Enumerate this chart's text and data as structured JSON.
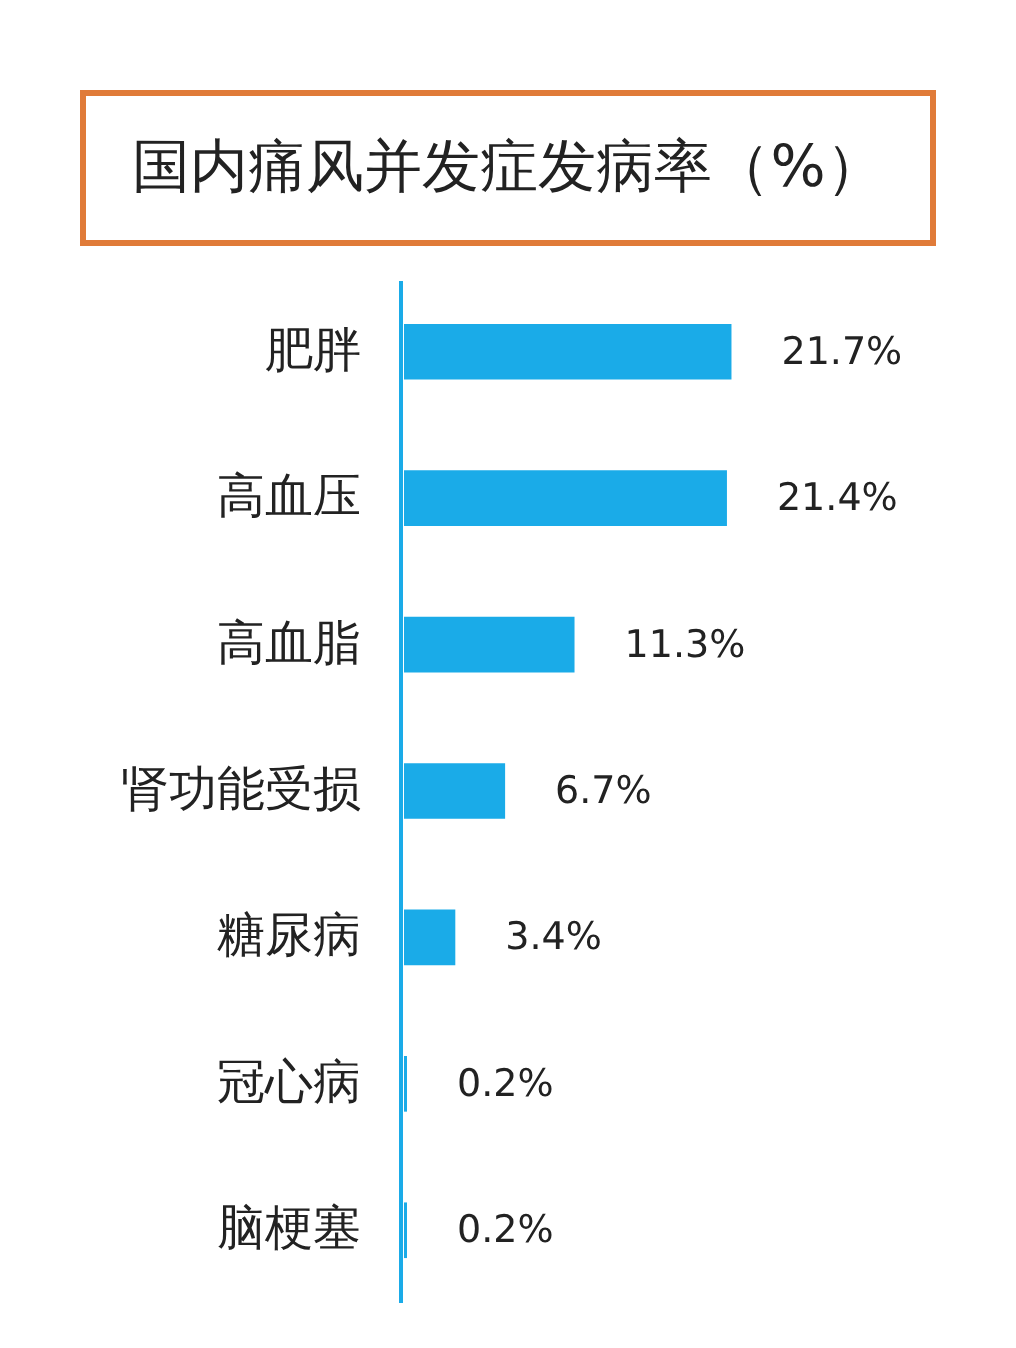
{
  "chart_data": {
    "type": "bar",
    "orientation": "horizontal",
    "title": "国内痛风并发症发病率（%）",
    "categories": [
      "肥胖",
      "高血压",
      "高血脂",
      "肾功能受损",
      "糖尿病",
      "冠心病",
      "脑梗塞"
    ],
    "values": [
      21.7,
      21.4,
      11.3,
      6.7,
      3.4,
      0.2,
      0.2
    ],
    "value_labels": [
      "21.7%",
      "21.4%",
      "11.3%",
      "6.7%",
      "3.4%",
      "0.2%",
      "0.2%"
    ],
    "color": "#1aabe8"
  }
}
